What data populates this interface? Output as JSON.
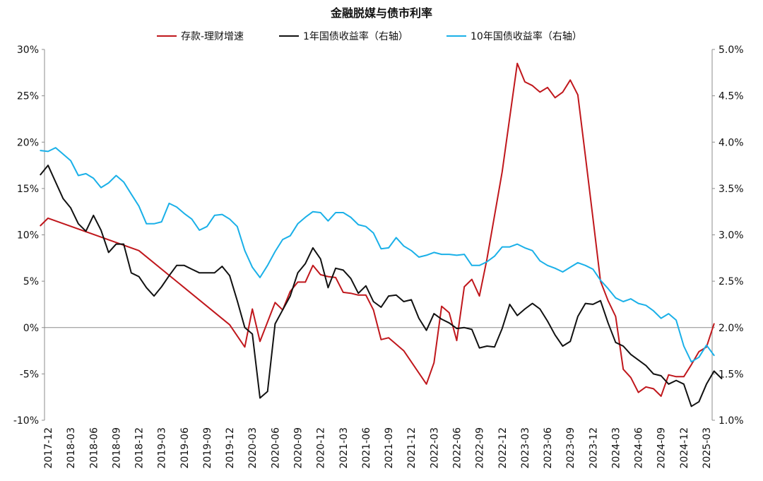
{
  "chart_data": {
    "type": "line",
    "title": "金融脱媒与债市利率",
    "legend_position": "top",
    "x_ticks": [
      "2017-12",
      "2018-03",
      "2018-06",
      "2018-09",
      "2018-12",
      "2019-03",
      "2019-06",
      "2019-09",
      "2019-12",
      "2020-03",
      "2020-06",
      "2020-09",
      "2020-12",
      "2021-03",
      "2021-06",
      "2021-09",
      "2021-12",
      "2022-03",
      "2022-06",
      "2022-09",
      "2022-12",
      "2023-03",
      "2023-06",
      "2023-09",
      "2023-12",
      "2024-03",
      "2024-06",
      "2024-09",
      "2024-12",
      "2025-03"
    ],
    "left_axis": {
      "ylim": [
        -10,
        30
      ],
      "ticks": [
        -10,
        -5,
        0,
        5,
        10,
        15,
        20,
        25,
        30
      ],
      "tick_labels": [
        "-10%",
        "-5%",
        "0%",
        "5%",
        "10%",
        "15%",
        "20%",
        "25%",
        "30%"
      ]
    },
    "right_axis": {
      "ylim": [
        1.0,
        5.0
      ],
      "ticks": [
        1.0,
        1.5,
        2.0,
        2.5,
        3.0,
        3.5,
        4.0,
        4.5,
        5.0
      ],
      "tick_labels": [
        "1.0%",
        "1.5%",
        "2.0%",
        "2.5%",
        "3.0%",
        "3.5%",
        "4.0%",
        "4.5%",
        "5.0%"
      ]
    },
    "zero_line": true,
    "grid": false,
    "series": [
      {
        "name": "存款-理财增速",
        "axis": "left",
        "color": "#c0171c",
        "points": [
          [
            "2017-11",
            11.0
          ],
          [
            "2017-12",
            11.8
          ],
          [
            "2018-12",
            8.3
          ],
          [
            "2019-12",
            0.3
          ],
          [
            "2020-02",
            -2.1
          ],
          [
            "2020-03",
            2.0
          ],
          [
            "2020-04",
            -1.5
          ],
          [
            "2020-06",
            2.7
          ],
          [
            "2020-07",
            1.9
          ],
          [
            "2020-08",
            3.9
          ],
          [
            "2020-09",
            4.9
          ],
          [
            "2020-10",
            4.9
          ],
          [
            "2020-11",
            6.7
          ],
          [
            "2020-12",
            5.7
          ],
          [
            "2021-01",
            5.5
          ],
          [
            "2021-02",
            5.4
          ],
          [
            "2021-03",
            3.8
          ],
          [
            "2021-04",
            3.7
          ],
          [
            "2021-05",
            3.5
          ],
          [
            "2021-06",
            3.5
          ],
          [
            "2021-07",
            1.9
          ],
          [
            "2021-08",
            -1.3
          ],
          [
            "2021-09",
            -1.1
          ],
          [
            "2021-10",
            -1.8
          ],
          [
            "2021-11",
            -2.5
          ],
          [
            "2021-12",
            -3.7
          ],
          [
            "2022-01",
            -4.9
          ],
          [
            "2022-02",
            -6.1
          ],
          [
            "2022-03",
            -3.8
          ],
          [
            "2022-04",
            2.3
          ],
          [
            "2022-05",
            1.6
          ],
          [
            "2022-06",
            -1.4
          ],
          [
            "2022-07",
            4.4
          ],
          [
            "2022-08",
            5.2
          ],
          [
            "2022-09",
            3.4
          ],
          [
            "2022-10",
            7.4
          ],
          [
            "2022-12",
            16.8
          ],
          [
            "2023-02",
            28.5
          ],
          [
            "2023-03",
            26.5
          ],
          [
            "2023-04",
            26.1
          ],
          [
            "2023-05",
            25.4
          ],
          [
            "2023-06",
            25.9
          ],
          [
            "2023-07",
            24.8
          ],
          [
            "2023-08",
            25.4
          ],
          [
            "2023-09",
            26.7
          ],
          [
            "2023-10",
            25.1
          ],
          [
            "2023-11",
            18.5
          ],
          [
            "2023-12",
            11.8
          ],
          [
            "2024-01",
            5.0
          ],
          [
            "2024-02",
            2.9
          ],
          [
            "2024-03",
            1.2
          ],
          [
            "2024-04",
            -4.5
          ],
          [
            "2024-05",
            -5.4
          ],
          [
            "2024-06",
            -7.0
          ],
          [
            "2024-07",
            -6.4
          ],
          [
            "2024-08",
            -6.6
          ],
          [
            "2024-09",
            -7.4
          ],
          [
            "2024-10",
            -5.1
          ],
          [
            "2024-11",
            -5.3
          ],
          [
            "2024-12",
            -5.3
          ],
          [
            "2025-01",
            -4.0
          ],
          [
            "2025-02",
            -2.6
          ],
          [
            "2025-03",
            -2.1
          ],
          [
            "2025-04",
            0.4
          ]
        ]
      },
      {
        "name": "1年国债收益率（右轴）",
        "axis": "right",
        "color": "#111111",
        "points": [
          [
            "2017-11",
            3.65
          ],
          [
            "2017-12",
            3.75
          ],
          [
            "2018-02",
            3.39
          ],
          [
            "2018-03",
            3.29
          ],
          [
            "2018-04",
            3.12
          ],
          [
            "2018-05",
            3.04
          ],
          [
            "2018-06",
            3.21
          ],
          [
            "2018-07",
            3.05
          ],
          [
            "2018-08",
            2.81
          ],
          [
            "2018-09",
            2.9
          ],
          [
            "2018-10",
            2.9
          ],
          [
            "2018-11",
            2.59
          ],
          [
            "2018-12",
            2.55
          ],
          [
            "2019-01",
            2.43
          ],
          [
            "2019-02",
            2.34
          ],
          [
            "2019-03",
            2.44
          ],
          [
            "2019-04",
            2.56
          ],
          [
            "2019-05",
            2.67
          ],
          [
            "2019-06",
            2.67
          ],
          [
            "2019-07",
            2.63
          ],
          [
            "2019-08",
            2.59
          ],
          [
            "2019-09",
            2.59
          ],
          [
            "2019-10",
            2.59
          ],
          [
            "2019-11",
            2.66
          ],
          [
            "2019-12",
            2.56
          ],
          [
            "2020-01",
            2.29
          ],
          [
            "2020-02",
            2.0
          ],
          [
            "2020-03",
            1.93
          ],
          [
            "2020-04",
            1.24
          ],
          [
            "2020-05",
            1.31
          ],
          [
            "2020-06",
            2.04
          ],
          [
            "2020-07",
            2.19
          ],
          [
            "2020-08",
            2.34
          ],
          [
            "2020-09",
            2.59
          ],
          [
            "2020-10",
            2.69
          ],
          [
            "2020-11",
            2.86
          ],
          [
            "2020-12",
            2.74
          ],
          [
            "2021-01",
            2.43
          ],
          [
            "2021-02",
            2.64
          ],
          [
            "2021-03",
            2.62
          ],
          [
            "2021-04",
            2.53
          ],
          [
            "2021-05",
            2.37
          ],
          [
            "2021-06",
            2.45
          ],
          [
            "2021-07",
            2.28
          ],
          [
            "2021-08",
            2.22
          ],
          [
            "2021-09",
            2.34
          ],
          [
            "2021-10",
            2.35
          ],
          [
            "2021-11",
            2.28
          ],
          [
            "2021-12",
            2.3
          ],
          [
            "2022-01",
            2.1
          ],
          [
            "2022-02",
            1.97
          ],
          [
            "2022-03",
            2.15
          ],
          [
            "2022-04",
            2.09
          ],
          [
            "2022-05",
            2.05
          ],
          [
            "2022-06",
            1.99
          ],
          [
            "2022-07",
            2.0
          ],
          [
            "2022-08",
            1.98
          ],
          [
            "2022-09",
            1.78
          ],
          [
            "2022-10",
            1.8
          ],
          [
            "2022-11",
            1.79
          ],
          [
            "2022-12",
            1.99
          ],
          [
            "2023-01",
            2.25
          ],
          [
            "2023-02",
            2.13
          ],
          [
            "2023-03",
            2.2
          ],
          [
            "2023-04",
            2.26
          ],
          [
            "2023-05",
            2.2
          ],
          [
            "2023-06",
            2.07
          ],
          [
            "2023-07",
            1.92
          ],
          [
            "2023-08",
            1.8
          ],
          [
            "2023-09",
            1.85
          ],
          [
            "2023-10",
            2.12
          ],
          [
            "2023-11",
            2.26
          ],
          [
            "2023-12",
            2.25
          ],
          [
            "2024-01",
            2.29
          ],
          [
            "2024-02",
            2.05
          ],
          [
            "2024-03",
            1.84
          ],
          [
            "2024-04",
            1.8
          ],
          [
            "2024-05",
            1.71
          ],
          [
            "2024-06",
            1.65
          ],
          [
            "2024-07",
            1.59
          ],
          [
            "2024-08",
            1.5
          ],
          [
            "2024-09",
            1.48
          ],
          [
            "2024-10",
            1.39
          ],
          [
            "2024-11",
            1.43
          ],
          [
            "2024-12",
            1.39
          ],
          [
            "2025-01",
            1.15
          ],
          [
            "2025-02",
            1.2
          ],
          [
            "2025-03",
            1.39
          ],
          [
            "2025-04",
            1.53
          ],
          [
            "2025-05",
            1.45
          ]
        ]
      },
      {
        "name": "10年国债收益率（右轴）",
        "axis": "right",
        "color": "#1ab0e8",
        "points": [
          [
            "2017-11",
            3.91
          ],
          [
            "2017-12",
            3.9
          ],
          [
            "2018-01",
            3.94
          ],
          [
            "2018-02",
            3.87
          ],
          [
            "2018-03",
            3.8
          ],
          [
            "2018-04",
            3.64
          ],
          [
            "2018-05",
            3.66
          ],
          [
            "2018-06",
            3.61
          ],
          [
            "2018-07",
            3.51
          ],
          [
            "2018-08",
            3.56
          ],
          [
            "2018-09",
            3.64
          ],
          [
            "2018-10",
            3.57
          ],
          [
            "2018-11",
            3.44
          ],
          [
            "2018-12",
            3.31
          ],
          [
            "2019-01",
            3.12
          ],
          [
            "2019-02",
            3.12
          ],
          [
            "2019-03",
            3.14
          ],
          [
            "2019-04",
            3.34
          ],
          [
            "2019-05",
            3.3
          ],
          [
            "2019-06",
            3.23
          ],
          [
            "2019-07",
            3.17
          ],
          [
            "2019-08",
            3.05
          ],
          [
            "2019-09",
            3.09
          ],
          [
            "2019-10",
            3.21
          ],
          [
            "2019-11",
            3.22
          ],
          [
            "2019-12",
            3.17
          ],
          [
            "2020-01",
            3.09
          ],
          [
            "2020-02",
            2.83
          ],
          [
            "2020-03",
            2.65
          ],
          [
            "2020-04",
            2.54
          ],
          [
            "2020-05",
            2.67
          ],
          [
            "2020-06",
            2.82
          ],
          [
            "2020-07",
            2.95
          ],
          [
            "2020-08",
            2.99
          ],
          [
            "2020-09",
            3.12
          ],
          [
            "2020-10",
            3.19
          ],
          [
            "2020-11",
            3.25
          ],
          [
            "2020-12",
            3.24
          ],
          [
            "2021-01",
            3.15
          ],
          [
            "2021-02",
            3.24
          ],
          [
            "2021-03",
            3.24
          ],
          [
            "2021-04",
            3.19
          ],
          [
            "2021-05",
            3.11
          ],
          [
            "2021-06",
            3.09
          ],
          [
            "2021-07",
            3.02
          ],
          [
            "2021-08",
            2.85
          ],
          [
            "2021-09",
            2.86
          ],
          [
            "2021-10",
            2.97
          ],
          [
            "2021-11",
            2.88
          ],
          [
            "2021-12",
            2.83
          ],
          [
            "2022-01",
            2.76
          ],
          [
            "2022-02",
            2.78
          ],
          [
            "2022-03",
            2.81
          ],
          [
            "2022-04",
            2.79
          ],
          [
            "2022-05",
            2.79
          ],
          [
            "2022-06",
            2.78
          ],
          [
            "2022-07",
            2.79
          ],
          [
            "2022-08",
            2.67
          ],
          [
            "2022-09",
            2.67
          ],
          [
            "2022-10",
            2.71
          ],
          [
            "2022-11",
            2.77
          ],
          [
            "2022-12",
            2.87
          ],
          [
            "2023-01",
            2.87
          ],
          [
            "2023-02",
            2.9
          ],
          [
            "2023-03",
            2.86
          ],
          [
            "2023-04",
            2.83
          ],
          [
            "2023-05",
            2.72
          ],
          [
            "2023-06",
            2.67
          ],
          [
            "2023-07",
            2.64
          ],
          [
            "2023-08",
            2.6
          ],
          [
            "2023-09",
            2.65
          ],
          [
            "2023-10",
            2.7
          ],
          [
            "2023-11",
            2.67
          ],
          [
            "2023-12",
            2.63
          ],
          [
            "2024-01",
            2.51
          ],
          [
            "2024-02",
            2.42
          ],
          [
            "2024-03",
            2.32
          ],
          [
            "2024-04",
            2.28
          ],
          [
            "2024-05",
            2.31
          ],
          [
            "2024-06",
            2.26
          ],
          [
            "2024-07",
            2.24
          ],
          [
            "2024-08",
            2.18
          ],
          [
            "2024-09",
            2.1
          ],
          [
            "2024-10",
            2.15
          ],
          [
            "2024-11",
            2.08
          ],
          [
            "2024-12",
            1.8
          ],
          [
            "2025-01",
            1.63
          ],
          [
            "2025-02",
            1.68
          ],
          [
            "2025-03",
            1.81
          ],
          [
            "2025-04",
            1.7
          ]
        ]
      }
    ]
  }
}
